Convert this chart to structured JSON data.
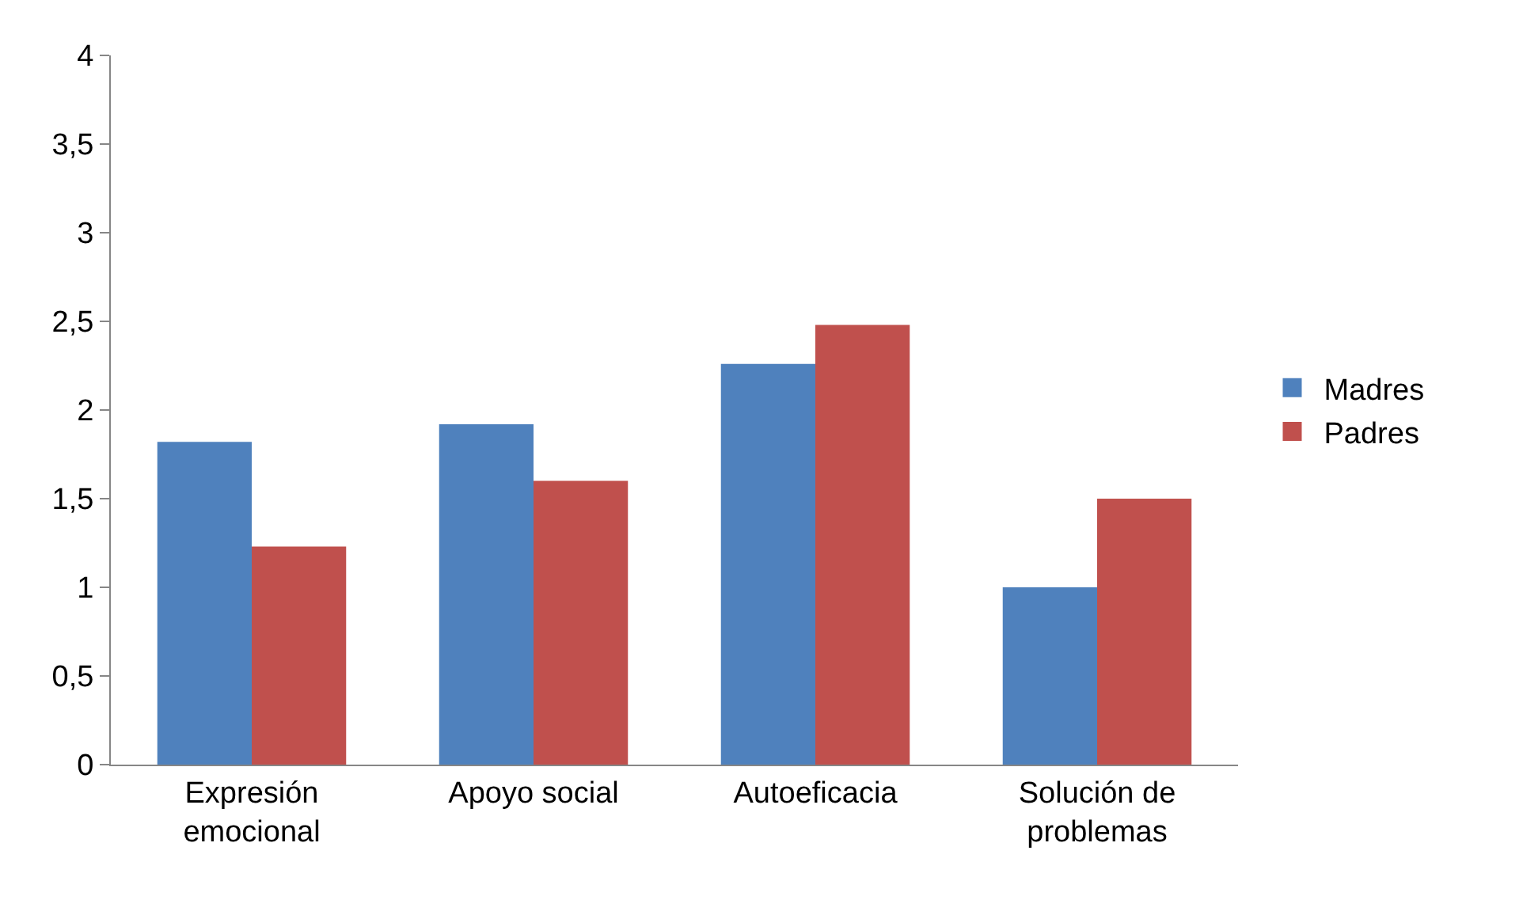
{
  "chart_data": {
    "type": "bar",
    "categories": [
      "Expresión\nemocional",
      "Apoyo social",
      "Autoeficacia",
      "Solución de\nproblemas"
    ],
    "series": [
      {
        "name": "Madres",
        "color": "#4f81bd",
        "values": [
          1.82,
          1.92,
          2.26,
          1.0
        ]
      },
      {
        "name": "Padres",
        "color": "#c0504d",
        "values": [
          1.23,
          1.6,
          2.48,
          1.5
        ]
      }
    ],
    "ylim": [
      0,
      4
    ],
    "yticks": [
      0,
      {
        "value": 0.5,
        "label": "0,5"
      },
      1,
      {
        "value": 1.5,
        "label": "1,5"
      },
      2,
      {
        "value": 2.5,
        "label": "2,5"
      },
      3,
      {
        "value": 3.5,
        "label": "3,5"
      },
      4
    ],
    "legend": "right"
  }
}
